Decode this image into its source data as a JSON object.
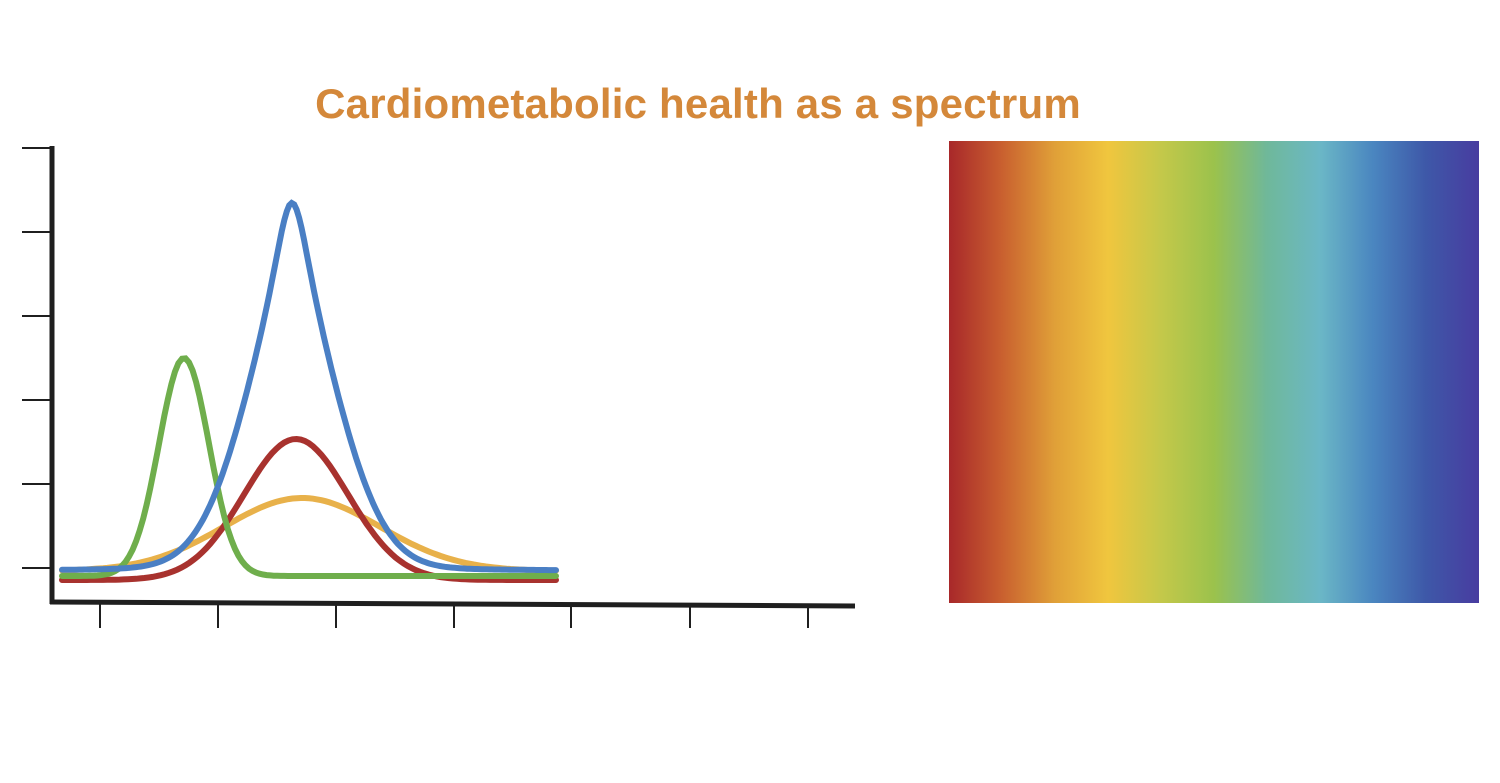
{
  "title": "Cardiometabolic health as a spectrum",
  "colors": {
    "title": "#D4883A",
    "axis": "#1f1f1f",
    "curve_green": "#6FAE4C",
    "curve_blue": "#4A7FC4",
    "curve_red": "#A8322E",
    "curve_yellow": "#E8B14A"
  },
  "chart_data": {
    "type": "line",
    "description_series": [
      {
        "name": "green",
        "shape": "narrow-peak",
        "peak": 0.6,
        "center": 1.45
      },
      {
        "name": "blue",
        "shape": "tall-peak",
        "peak": 1.0,
        "center": 3.25
      },
      {
        "name": "red",
        "shape": "medium-peak",
        "peak": 0.37,
        "center": 3.3
      },
      {
        "name": "yellow",
        "shape": "wide-low-peak",
        "peak": 0.2,
        "center": 3.45
      }
    ],
    "x_ticks": 7,
    "y_ticks": 6
  },
  "spectrum": {
    "stops": [
      "#A8282A",
      "#C9602F",
      "#E0A038",
      "#F0C63E",
      "#C4C84A",
      "#9BC24C",
      "#6FB89A",
      "#6BB7C6",
      "#4A86C0",
      "#3E58A8",
      "#483CA0"
    ]
  }
}
